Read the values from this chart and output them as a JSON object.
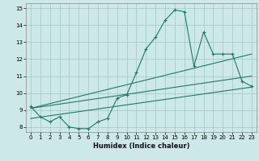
{
  "xlabel": "Humidex (Indice chaleur)",
  "bg_color": "#cce8e8",
  "grid_color": "#aacccc",
  "line_color": "#1a7a6a",
  "xlim": [
    -0.5,
    23.5
  ],
  "ylim": [
    7.7,
    15.3
  ],
  "xticks": [
    0,
    1,
    2,
    3,
    4,
    5,
    6,
    7,
    8,
    9,
    10,
    11,
    12,
    13,
    14,
    15,
    16,
    17,
    18,
    19,
    20,
    21,
    22,
    23
  ],
  "yticks": [
    8,
    9,
    10,
    11,
    12,
    13,
    14,
    15
  ],
  "curve1_x": [
    0,
    1,
    2,
    3,
    4,
    5,
    6,
    7,
    8,
    9,
    10,
    11,
    12,
    13,
    14,
    15,
    16,
    17,
    18,
    19,
    20,
    21,
    22,
    23
  ],
  "curve1_y": [
    9.2,
    8.6,
    8.3,
    8.6,
    8.0,
    7.9,
    7.9,
    8.3,
    8.5,
    9.7,
    9.9,
    11.2,
    12.6,
    13.3,
    14.3,
    14.9,
    14.8,
    11.6,
    13.6,
    12.3,
    12.3,
    12.3,
    10.7,
    10.4
  ],
  "curve2_x": [
    0,
    23
  ],
  "curve2_y": [
    9.1,
    12.3
  ],
  "curve3_x": [
    0,
    23
  ],
  "curve3_y": [
    9.1,
    11.0
  ],
  "curve4_x": [
    0,
    23
  ],
  "curve4_y": [
    8.5,
    10.35
  ]
}
